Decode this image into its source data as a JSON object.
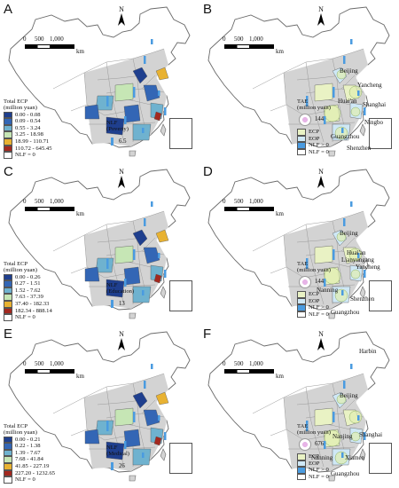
{
  "north_label": "N",
  "scale": {
    "ticks": [
      "0",
      "500",
      "1,000"
    ],
    "unit": "km"
  },
  "nlf_legend_entry": "NLF = 0",
  "nlf_pos": "NLF > 0",
  "ecp": "ECP",
  "eop": "EOP",
  "colors": {
    "nlf_bar": "#4a9be0",
    "province_fill": "#d3d3d3",
    "ecp_fill": "#e9f2c4",
    "eop_fill": "#cfe8f6"
  },
  "panels": [
    {
      "label": "A",
      "type": "ecp",
      "legend_title": [
        "Total ECP",
        "(million yuan)"
      ],
      "classes": [
        {
          "range": "0.00 - 0.08",
          "color": "#1f3f8e"
        },
        {
          "range": "0.09 - 0.54",
          "color": "#3366b5"
        },
        {
          "range": "0.55 - 3.24",
          "color": "#6fb2cf"
        },
        {
          "range": "3.25 - 18.98",
          "color": "#c6e6b5"
        },
        {
          "range": "18.99 - 110.71",
          "color": "#e8b232"
        },
        {
          "range": "110.72 - 645.45",
          "color": "#a3281f"
        }
      ],
      "nlf_title": [
        "NLF",
        "(Poverty)"
      ],
      "nlf_value": "6.5"
    },
    {
      "label": "B",
      "type": "tae",
      "tae_title": [
        "TAE",
        "(million yuan)"
      ],
      "tae_value": "144",
      "cities": [
        "Beijing",
        "Yancheng",
        "Huai'an",
        "Shanghai",
        "Ningbo",
        "Guangzhou",
        "Shenzhen"
      ]
    },
    {
      "label": "C",
      "type": "ecp",
      "legend_title": [
        "Total ECP",
        "(million yuan)"
      ],
      "classes": [
        {
          "range": "0.00 - 0.26",
          "color": "#1f3f8e"
        },
        {
          "range": "0.27 - 1.51",
          "color": "#3366b5"
        },
        {
          "range": "1.52 - 7.62",
          "color": "#6fb2cf"
        },
        {
          "range": "7.63 - 37.39",
          "color": "#c6e6b5"
        },
        {
          "range": "37.40 - 182.33",
          "color": "#e8b232"
        },
        {
          "range": "182.34 - 888.14",
          "color": "#a3281f"
        }
      ],
      "nlf_title": [
        "NLF",
        "(Education)"
      ],
      "nlf_value": "13"
    },
    {
      "label": "D",
      "type": "tae",
      "tae_title": [
        "TAE",
        "(million yuan)"
      ],
      "tae_value": "144",
      "cities": [
        "Beijing",
        "Huai'an",
        "Lianyungang",
        "Yancheng",
        "Nanning",
        "Shenzhen",
        "Guangzhou"
      ]
    },
    {
      "label": "E",
      "type": "ecp",
      "legend_title": [
        "Total ECP",
        "(million yuan)"
      ],
      "classes": [
        {
          "range": "0.00 - 0.21",
          "color": "#1f3f8e"
        },
        {
          "range": "0.22 - 1.38",
          "color": "#3366b5"
        },
        {
          "range": "1.39 - 7.67",
          "color": "#6fb2cf"
        },
        {
          "range": "7.68 - 41.84",
          "color": "#c6e6b5"
        },
        {
          "range": "41.85 - 227.19",
          "color": "#e8b232"
        },
        {
          "range": "227.20 - 1232.65",
          "color": "#a3281f"
        }
      ],
      "nlf_title": [
        "NLF",
        "(Medical)"
      ],
      "nlf_value": "26"
    },
    {
      "label": "F",
      "type": "tae",
      "tae_title": [
        "TAE",
        "(million yuan)"
      ],
      "tae_value": "676",
      "cities": [
        "Harbin",
        "Beijing",
        "Shanghai",
        "Nanjing",
        "Nanning",
        "Xiamen",
        "Guangzhou"
      ]
    }
  ]
}
